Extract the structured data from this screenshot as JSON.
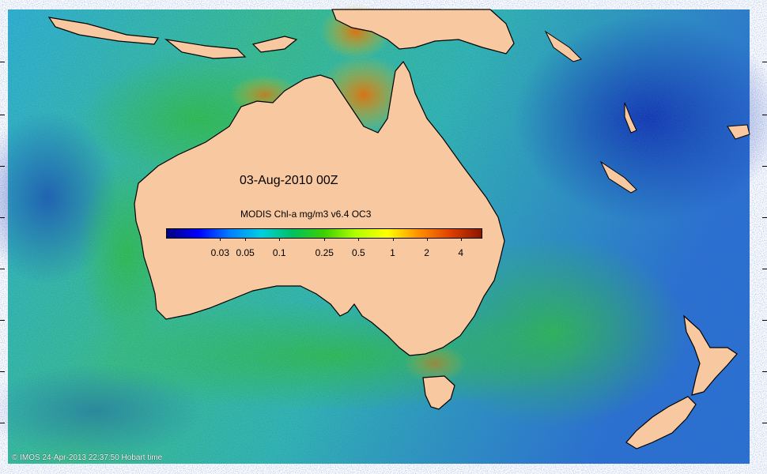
{
  "map": {
    "date_label": "03-Aug-2010 00Z",
    "product_label": "MODIS Chl-a mg/m3 v6.4 OC3",
    "copyright": "© IMOS 24-Apr-2013 22:37:50 Hobart time"
  },
  "colorbar": {
    "colors": [
      "#00007f",
      "#0000ff",
      "#007fff",
      "#00cfe0",
      "#00c060",
      "#3cd000",
      "#b0ff00",
      "#ffff00",
      "#ff9000",
      "#e04000",
      "#8b1500"
    ],
    "ticks": [
      {
        "label": "0.03",
        "value": 0.03
      },
      {
        "label": "0.05",
        "value": 0.05
      },
      {
        "label": "0.1",
        "value": 0.1
      },
      {
        "label": "0.25",
        "value": 0.25
      },
      {
        "label": "0.5",
        "value": 0.5
      },
      {
        "label": "1",
        "value": 1
      },
      {
        "label": "2",
        "value": 2
      },
      {
        "label": "4",
        "value": 4
      }
    ],
    "range": [
      0.01,
      6
    ]
  },
  "colors": {
    "land": "#f8c8a0",
    "ocean_low": "#1b5bd8",
    "ocean_mid": "#2ab8d8",
    "ocean_green": "#40c060",
    "coastal_high": "#e08020"
  }
}
